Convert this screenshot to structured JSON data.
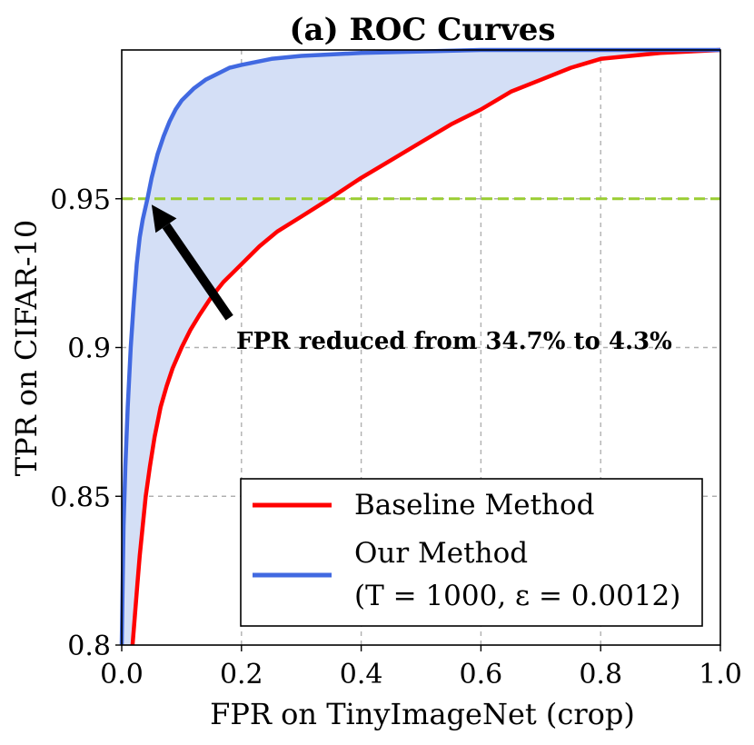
{
  "chart_data": {
    "type": "line",
    "title": "(a) ROC Curves",
    "xlabel": "FPR on TinyImageNet (crop)",
    "ylabel": "TPR on CIFAR-10",
    "xlim": [
      0.0,
      1.0
    ],
    "ylim": [
      0.8,
      1.0
    ],
    "xticks": [
      "0.0",
      "0.2",
      "0.4",
      "0.6",
      "0.8",
      "1.0"
    ],
    "xtick_values": [
      0.0,
      0.2,
      0.4,
      0.6,
      0.8,
      1.0
    ],
    "yticks": [
      "0.8",
      "0.85",
      "0.9",
      "0.95"
    ],
    "ytick_values": [
      0.8,
      0.85,
      0.9,
      0.95
    ],
    "grid": true,
    "legend_position": "bottom-right",
    "reference_line": {
      "y": 0.95,
      "color": "#9ACD32",
      "style": "dashed"
    },
    "fill_between": {
      "color": "#d4dff6"
    },
    "annotation": {
      "text": "FPR reduced from 34.7% to 4.3%",
      "arrow_from": [
        0.18,
        0.91
      ],
      "arrow_to": [
        0.05,
        0.948
      ]
    },
    "series": [
      {
        "name": "Baseline Method",
        "color": "#ff0000",
        "x": [
          0.018,
          0.022,
          0.026,
          0.03,
          0.035,
          0.04,
          0.047,
          0.055,
          0.065,
          0.075,
          0.085,
          0.1,
          0.115,
          0.13,
          0.15,
          0.17,
          0.2,
          0.23,
          0.26,
          0.3,
          0.347,
          0.4,
          0.45,
          0.5,
          0.55,
          0.6,
          0.65,
          0.7,
          0.75,
          0.8,
          0.85,
          0.9,
          0.95,
          1.0
        ],
        "y": [
          0.8,
          0.81,
          0.82,
          0.83,
          0.84,
          0.85,
          0.86,
          0.87,
          0.88,
          0.887,
          0.893,
          0.9,
          0.906,
          0.911,
          0.917,
          0.922,
          0.928,
          0.934,
          0.939,
          0.944,
          0.95,
          0.957,
          0.963,
          0.969,
          0.975,
          0.98,
          0.986,
          0.99,
          0.994,
          0.997,
          0.998,
          0.999,
          0.9995,
          1.0
        ]
      },
      {
        "name": "Our Method",
        "name_line2": "(T = 1000, ε = 0.0012)",
        "color": "#4169e1",
        "x": [
          0.0,
          0.003,
          0.006,
          0.01,
          0.015,
          0.02,
          0.025,
          0.03,
          0.035,
          0.043,
          0.05,
          0.06,
          0.07,
          0.08,
          0.09,
          0.1,
          0.12,
          0.14,
          0.16,
          0.18,
          0.2,
          0.25,
          0.3,
          0.35,
          0.4,
          0.5,
          0.6,
          0.7,
          0.8,
          0.9,
          1.0
        ],
        "y": [
          0.8,
          0.84,
          0.86,
          0.88,
          0.9,
          0.915,
          0.928,
          0.937,
          0.943,
          0.95,
          0.957,
          0.965,
          0.971,
          0.976,
          0.98,
          0.983,
          0.987,
          0.99,
          0.992,
          0.994,
          0.995,
          0.997,
          0.998,
          0.9985,
          0.999,
          0.9995,
          1.0,
          1.0,
          1.0,
          1.0,
          1.0
        ]
      }
    ]
  }
}
